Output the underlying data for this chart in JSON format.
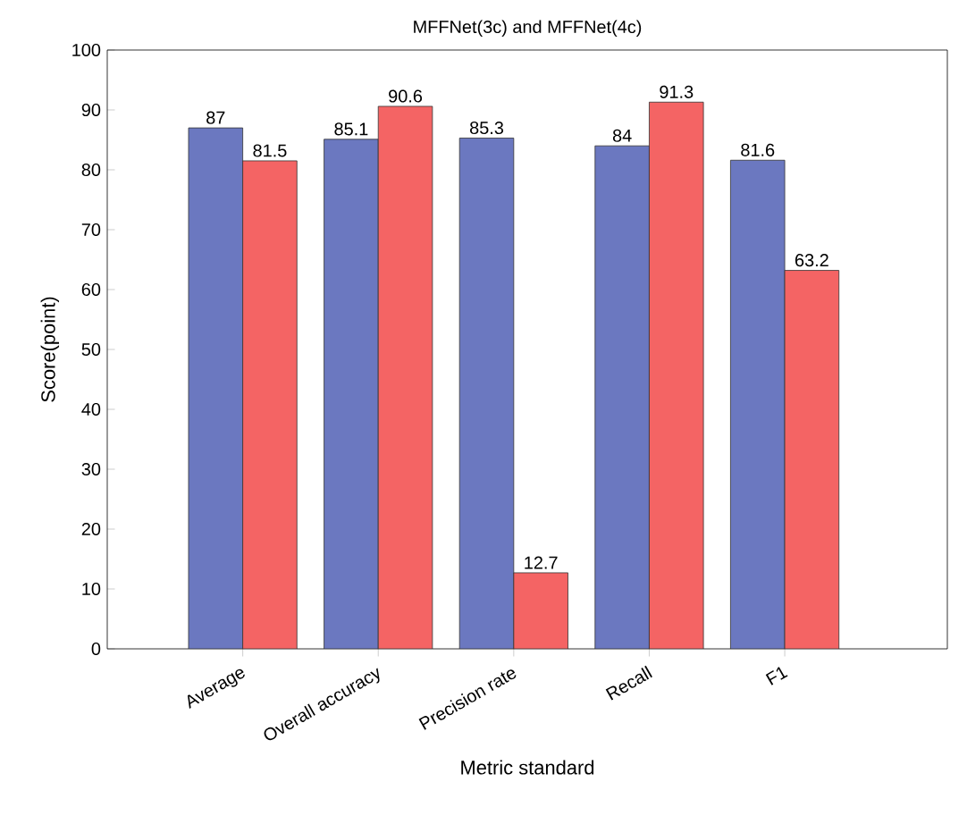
{
  "chart_data": {
    "type": "bar",
    "title": "MFFNet(3c) and MFFNet(4c)",
    "xlabel": "Metric standard",
    "ylabel": "Score(point)",
    "categories": [
      "Average",
      "Overall accuracy",
      "Precision rate",
      "Recall",
      "F1"
    ],
    "series": [
      {
        "color": "#6b78c0",
        "values": [
          87,
          85.1,
          85.3,
          84,
          81.6
        ]
      },
      {
        "color": "#f46464",
        "values": [
          81.5,
          90.6,
          12.7,
          91.3,
          63.2
        ]
      }
    ],
    "ylim": [
      0,
      100
    ],
    "yticks": [
      0,
      10,
      20,
      30,
      40,
      50,
      60,
      70,
      80,
      90,
      100
    ],
    "data_labels": true
  }
}
